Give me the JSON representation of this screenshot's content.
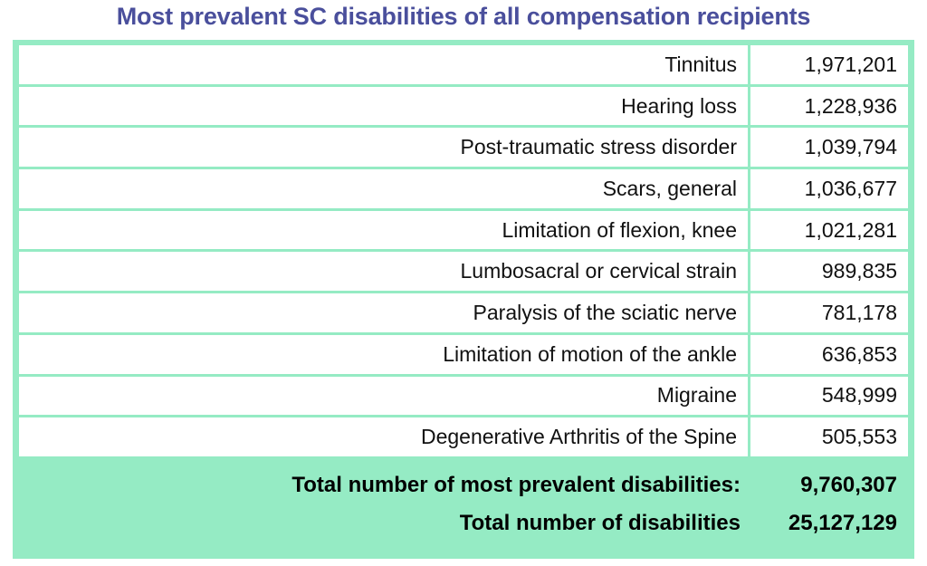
{
  "chart_data": {
    "type": "table",
    "title": "Most prevalent SC disabilities of all compensation recipients",
    "rows": [
      {
        "label": "Tinnitus",
        "value": "1,971,201"
      },
      {
        "label": "Hearing loss",
        "value": "1,228,936"
      },
      {
        "label": "Post-traumatic stress disorder",
        "value": "1,039,794"
      },
      {
        "label": "Scars, general",
        "value": "1,036,677"
      },
      {
        "label": "Limitation of flexion, knee",
        "value": "1,021,281"
      },
      {
        "label": "Lumbosacral or cervical strain",
        "value": "989,835"
      },
      {
        "label": "Paralysis of the sciatic nerve",
        "value": "781,178"
      },
      {
        "label": "Limitation of motion of the ankle",
        "value": "636,853"
      },
      {
        "label": "Migraine",
        "value": "548,999"
      },
      {
        "label": "Degenerative Arthritis of the Spine",
        "value": "505,553"
      }
    ],
    "totals": [
      {
        "label": "Total number of most prevalent disabilities:",
        "value": "9,760,307"
      },
      {
        "label": "Total number of disabilities",
        "value": "25,127,129"
      }
    ]
  },
  "colors": {
    "title": "#4a4f9c",
    "accent_green": "#95ebc4",
    "cell_background": "#ffffff"
  }
}
